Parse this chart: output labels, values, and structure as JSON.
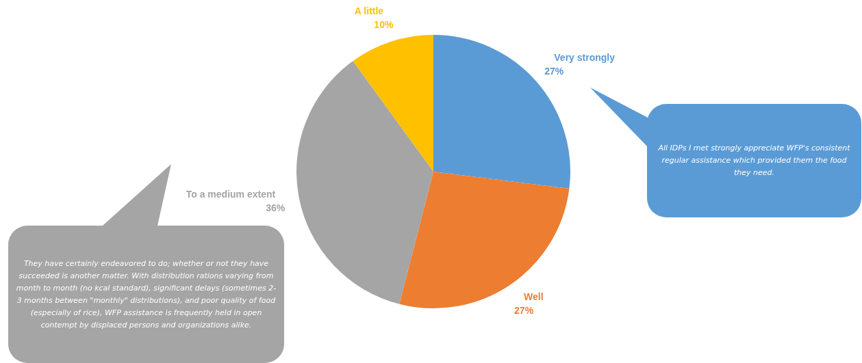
{
  "chart_data": {
    "type": "pie",
    "categories": [
      "Very strongly",
      "Well",
      "To a medium extent",
      "A little"
    ],
    "values": [
      27,
      27,
      36,
      10
    ],
    "value_labels": [
      "27%",
      "27%",
      "36%",
      "10%"
    ],
    "colors": [
      "#5b9bd5",
      "#ed7d31",
      "#a5a5a5",
      "#ffc000"
    ],
    "legend": false,
    "annotations": [
      "They have certainly endeavored to do; whether or not they have succeeded is another matter.  With distribution rations varying from month to month (no kcal standard), significant delays (sometimes 2-3 months between \"monthly\" distributions), and poor quality of food (especially of rice), WFP assistance is frequently held in open contempt by displaced persons and organizations alike.",
      "All IDPs I met strongly appreciate WFP's consistent regular assistance which provided them the food they need."
    ]
  }
}
